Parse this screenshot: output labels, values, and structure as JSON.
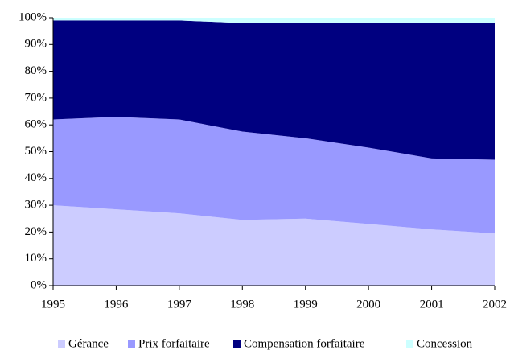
{
  "chart_data": {
    "type": "area",
    "stacked": true,
    "categories": [
      "1995",
      "1996",
      "1997",
      "1998",
      "1999",
      "2000",
      "2001",
      "2002"
    ],
    "series": [
      {
        "name": "Gérance",
        "color": "#ccccff",
        "values": [
          30,
          28.5,
          27,
          24.5,
          25,
          23,
          21,
          19.5
        ]
      },
      {
        "name": "Prix forfaitaire",
        "color": "#9999ff",
        "values": [
          32,
          34.5,
          35,
          33,
          30,
          28.5,
          26.5,
          27.5
        ]
      },
      {
        "name": "Compensation forfaitaire",
        "color": "#000080",
        "values": [
          37,
          36,
          37,
          40.5,
          43,
          46.5,
          50.5,
          51
        ]
      },
      {
        "name": "Concession",
        "color": "#ccffff",
        "values": [
          1,
          1,
          1,
          2,
          2,
          2,
          2,
          2
        ]
      }
    ],
    "ylim": [
      0,
      100
    ],
    "yticks": [
      {
        "value": 0,
        "label": "0%"
      },
      {
        "value": 10,
        "label": "10%"
      },
      {
        "value": 20,
        "label": "20%"
      },
      {
        "value": 30,
        "label": "30%"
      },
      {
        "value": 40,
        "label": "40%"
      },
      {
        "value": 50,
        "label": "50%"
      },
      {
        "value": 60,
        "label": "60%"
      },
      {
        "value": 70,
        "label": "70%"
      },
      {
        "value": 80,
        "label": "80%"
      },
      {
        "value": 90,
        "label": "90%"
      },
      {
        "value": 100,
        "label": "100%"
      }
    ],
    "legend": "bottom"
  }
}
